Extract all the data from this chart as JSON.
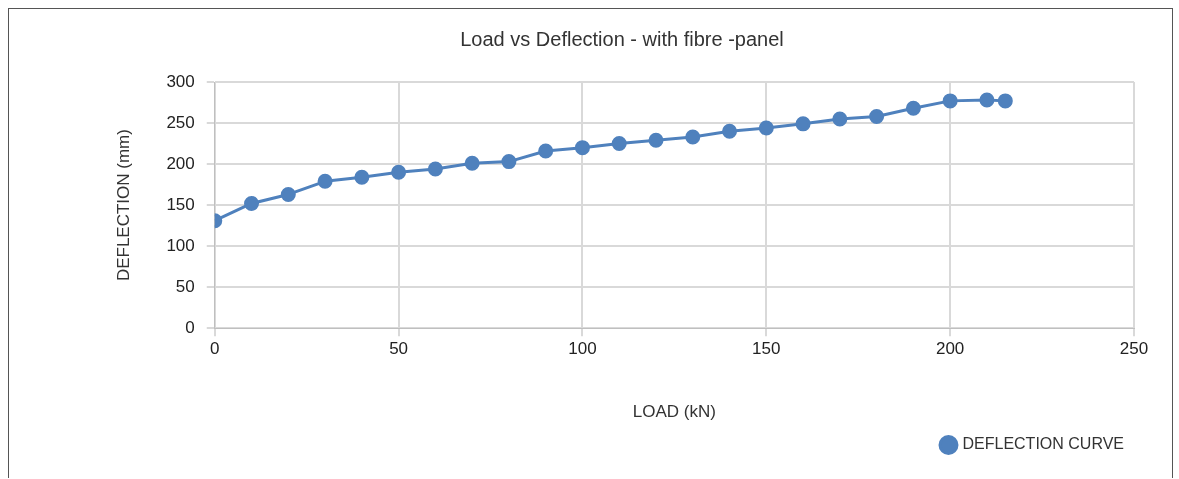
{
  "chart_data": {
    "type": "line",
    "title": "Load vs Deflection - with fibre -panel",
    "xlabel": "LOAD (kN)",
    "ylabel": "DEFLECTION (mm)",
    "x": [
      0,
      10,
      20,
      30,
      40,
      50,
      60,
      70,
      80,
      90,
      100,
      110,
      120,
      130,
      140,
      150,
      160,
      170,
      180,
      190,
      200,
      210,
      215
    ],
    "series": [
      {
        "name": "DEFLECTION CURVE",
        "color": "#4f81bd",
        "values": [
          131,
          152,
          163,
          179,
          184,
          190,
          194,
          201,
          203,
          216,
          220,
          225,
          229,
          233,
          240,
          244,
          249,
          255,
          258,
          268,
          277,
          278,
          277
        ]
      }
    ],
    "xlim": [
      0,
      250
    ],
    "xticks": [
      0,
      50,
      100,
      150,
      200,
      250
    ],
    "ylim": [
      0,
      300
    ],
    "yticks": [
      0,
      50,
      100,
      150,
      200,
      250,
      300
    ],
    "grid": true,
    "legend": "bottom right",
    "marker": "circle",
    "line_style": "solid"
  }
}
